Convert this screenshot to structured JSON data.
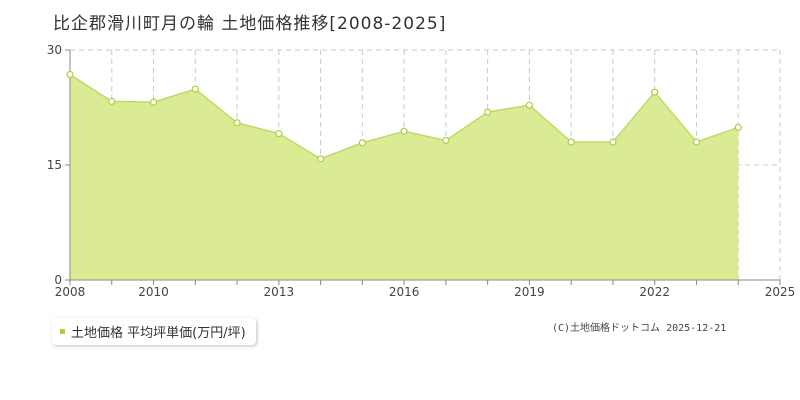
{
  "title": "比企郡滑川町月の輪 土地価格推移[2008-2025]",
  "legend": {
    "label": "土地価格 平均坪単価(万円/坪)"
  },
  "copyright": "(C)土地価格ドットコム 2025-12-21",
  "colors": {
    "fill": "#dbeb94",
    "line": "#bcdb6a",
    "marker": "#a8d23a",
    "grid": "#c8c8c8"
  },
  "chart_data": {
    "type": "area",
    "x": [
      2008,
      2009,
      2010,
      2011,
      2012,
      2013,
      2014,
      2015,
      2016,
      2017,
      2018,
      2019,
      2020,
      2021,
      2022,
      2023,
      2024,
      2025
    ],
    "series": [
      {
        "name": "土地価格 平均坪単価(万円/坪)",
        "values": [
          26.8,
          23.3,
          23.2,
          24.9,
          20.5,
          19.1,
          15.8,
          17.9,
          19.4,
          18.2,
          21.9,
          22.8,
          18.0,
          18.0,
          24.5,
          18.0,
          19.9,
          0
        ]
      }
    ],
    "x_tick_labels": [
      "2008",
      "2010",
      "2013",
      "2016",
      "2019",
      "2022",
      "2025"
    ],
    "y_ticks": [
      0,
      15,
      30
    ],
    "ylim": [
      0,
      30
    ],
    "xlim": [
      2008,
      2025
    ],
    "grid": true
  }
}
